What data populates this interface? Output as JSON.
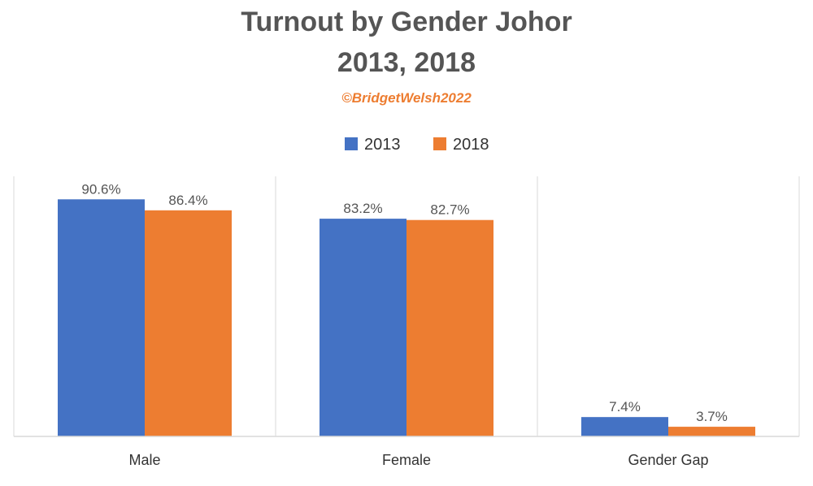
{
  "chart_data": {
    "type": "bar",
    "title_line1": "Turnout by Gender Johor",
    "title_line2": "2013, 2018",
    "subtitle": "©BridgetWelsh2022",
    "categories": [
      "Male",
      "Female",
      "Gender Gap"
    ],
    "series": [
      {
        "name": "2013",
        "color": "#4472C4",
        "values": [
          90.6,
          83.2,
          7.4
        ],
        "labels": [
          "90.6%",
          "83.2%",
          "7.4%"
        ]
      },
      {
        "name": "2018",
        "color": "#ED7D31",
        "values": [
          86.4,
          82.7,
          3.7
        ],
        "labels": [
          "86.4%",
          "82.7%",
          "3.7%"
        ]
      }
    ],
    "ylim": [
      0,
      100
    ],
    "grid": false,
    "category_separators": true,
    "legend_position": "top-center"
  }
}
